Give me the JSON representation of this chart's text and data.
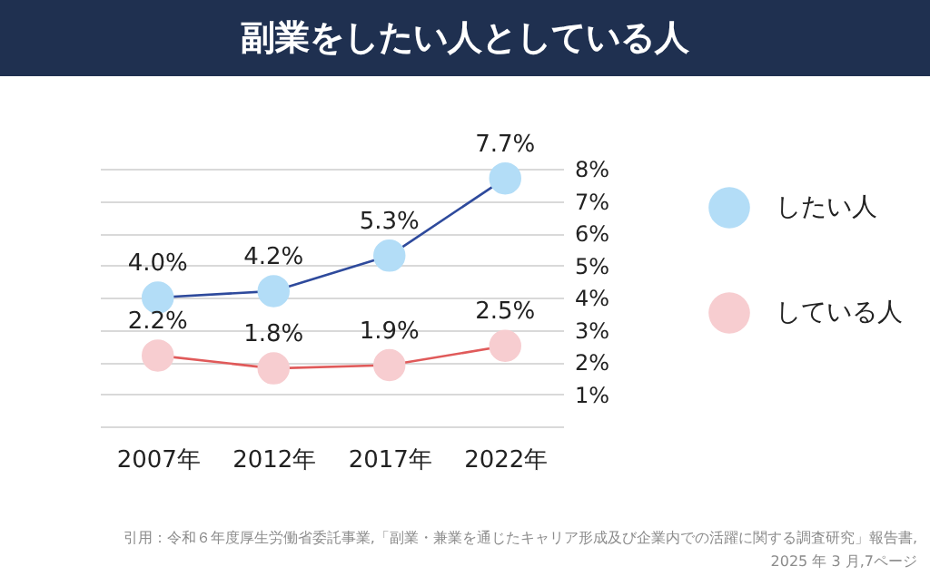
{
  "chart_data": {
    "type": "line",
    "title": "副業をしたい人としている人",
    "categories": [
      "2007年",
      "2012年",
      "2017年",
      "2022年"
    ],
    "series": [
      {
        "name": "したい人",
        "color": "#2e4a9c",
        "colors": [
          "#b3ddf7",
          "#b3ddf7",
          "#b3ddf7",
          "#b3ddf7"
        ],
        "values": [
          4.0,
          4.2,
          5.3,
          7.7
        ],
        "value_labels": [
          "4.0%",
          "4.2%",
          "5.3%",
          "7.7%"
        ]
      },
      {
        "name": "している人",
        "color": "#e05a5a",
        "colors": [
          "#f7cdd0",
          "#f7cdd0",
          "#f7cdd0",
          "#f7cdd0"
        ],
        "values": [
          2.2,
          1.8,
          1.9,
          2.5
        ],
        "value_labels": [
          "2.2%",
          "1.8%",
          "1.9%",
          "2.5%"
        ]
      }
    ],
    "ylim": [
      0,
      8
    ],
    "yticks": [
      {
        "value": 0,
        "label": null
      },
      {
        "value": 1,
        "label": "1%"
      },
      {
        "value": 2,
        "label": "2%"
      },
      {
        "value": 3,
        "label": "3%"
      },
      {
        "value": 4,
        "label": "4%"
      },
      {
        "value": 5,
        "label": "5%"
      },
      {
        "value": 6,
        "label": "6%"
      },
      {
        "value": 7,
        "label": "7%"
      },
      {
        "value": 8,
        "label": "8%"
      }
    ],
    "grid": "y",
    "legend": "right",
    "marker": "circle",
    "line_style": "solid",
    "annotations": [
      "引用：令和６年度厚生労働省委託事業,「副業・兼業を通じたキャリア形成及び企業内での活躍に関する調査研究」報告書,",
      "2025 年 3 月,7ページ"
    ]
  }
}
